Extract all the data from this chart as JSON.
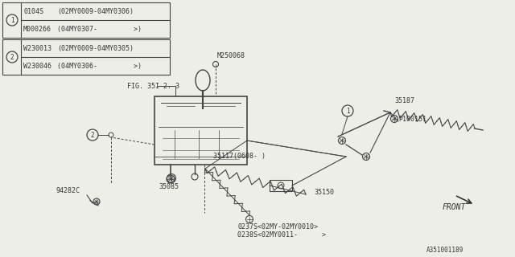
{
  "bg_color": "#eeeee8",
  "line_color": "#444444",
  "text_color": "#333333",
  "title_code": "A351001189",
  "table1_rows": [
    [
      "0104S",
      "(02MY0009-04MY0306)"
    ],
    [
      "M000266",
      "(04MY0307-         >)"
    ]
  ],
  "table2_rows": [
    [
      "W230013",
      "(02MY0009-04MY0305)"
    ],
    [
      "W230046",
      "(04MY0306-         >)"
    ]
  ],
  "fig_label": "FIG. 35I-2. 3",
  "m250068": "M250068",
  "label_35187": "35187",
  "label_p100151": "P100151",
  "label_35117": "35117(0608- )",
  "label_35150": "35150",
  "label_35085": "35085",
  "label_94282c": "94282C",
  "label_0237s": "0237S<02MY-02MY0010>",
  "label_0238s": "0238S<02MY0011-      >",
  "front_label": "FRONT"
}
